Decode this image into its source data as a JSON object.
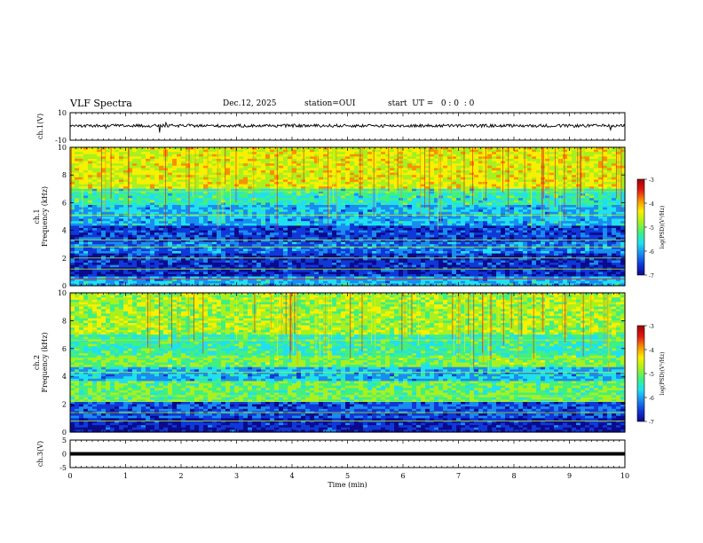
{
  "header": {
    "title": "VLF Spectra",
    "date": "Dec.12, 2025",
    "station": "station=OUI",
    "start": "start  UT =   0 : 0  : 0"
  },
  "colors": {
    "trace": "#000000",
    "colormap": [
      "#0a0a8c",
      "#1038d8",
      "#1a8cf0",
      "#20e0f0",
      "#40f080",
      "#a8f020",
      "#f8f000",
      "#f89000",
      "#e01818",
      "#a00000"
    ]
  },
  "chart_data": [
    {
      "id": "ch1",
      "type": "line",
      "ylabel": "ch.1(V)",
      "ylim": [
        -10,
        10
      ],
      "yticks": [
        "10",
        "-10"
      ],
      "xlim": [
        0,
        10
      ],
      "baseline": 0.5,
      "note": "noisy waveform trace with sparse spikes"
    },
    {
      "id": "spec1",
      "type": "heatmap",
      "ylabel": "ch.1\nFrequency (kHz)",
      "ylim": [
        0,
        10
      ],
      "yticks": [
        "0",
        "2",
        "4",
        "6",
        "8",
        "10"
      ],
      "xlim": [
        0,
        10
      ],
      "colorbar": {
        "label": "log(PSD)(V²/Hz)",
        "range": [
          -7,
          -3
        ],
        "ticks": [
          "-3",
          "-4",
          "-5",
          "-6",
          "-7"
        ]
      }
    },
    {
      "id": "spec2",
      "type": "heatmap",
      "ylabel": "ch.2\nFrequency (kHz)",
      "ylim": [
        0,
        10
      ],
      "yticks": [
        "0",
        "2",
        "4",
        "6",
        "8",
        "10"
      ],
      "xlim": [
        0,
        10
      ],
      "colorbar": {
        "label": "log(PSD)(V²/Hz)",
        "range": [
          -7,
          -3
        ],
        "ticks": [
          "-3",
          "-4",
          "-5",
          "-6",
          "-7"
        ]
      }
    },
    {
      "id": "ch3",
      "type": "line",
      "ylabel": "ch.3(V)",
      "ylim": [
        -5,
        5
      ],
      "yticks": [
        "5",
        "0",
        "-5"
      ],
      "xlim": [
        0,
        10
      ],
      "baseline": 0,
      "note": "flat thick trace"
    }
  ],
  "xaxis": {
    "label": "Time (min)",
    "ticks": [
      "0",
      "1",
      "2",
      "3",
      "4",
      "5",
      "6",
      "7",
      "8",
      "9",
      "10"
    ]
  }
}
